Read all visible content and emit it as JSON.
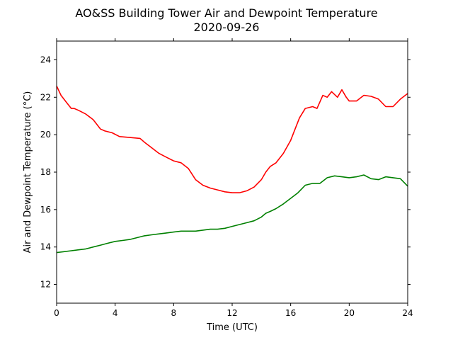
{
  "chart_data": {
    "type": "line",
    "title": "AO&SS Building Tower Air and Dewpoint Temperature",
    "subtitle": "2020-09-26",
    "xlabel": "Time (UTC)",
    "ylabel": "Air and Dewpoint Temperature (°C)",
    "xlim": [
      0,
      24
    ],
    "ylim": [
      11,
      25
    ],
    "xticks": [
      0,
      4,
      8,
      12,
      16,
      20,
      24
    ],
    "yticks": [
      12,
      14,
      16,
      18,
      20,
      22,
      24
    ],
    "grid": false,
    "legend": "none",
    "series": [
      {
        "color": "#ff0000",
        "x": [
          0,
          0.3,
          0.6,
          1.0,
          1.2,
          1.5,
          2.0,
          2.5,
          3.0,
          3.3,
          3.8,
          4.3,
          5.0,
          5.7,
          6.0,
          6.5,
          7.0,
          7.5,
          8.0,
          8.5,
          9.0,
          9.5,
          10.0,
          10.5,
          11.0,
          11.5,
          12.0,
          12.5,
          13.0,
          13.5,
          14.0,
          14.3,
          14.6,
          15.0,
          15.5,
          16.0,
          16.3,
          16.6,
          17.0,
          17.5,
          17.8,
          18.2,
          18.5,
          18.8,
          19.2,
          19.5,
          19.8,
          20.0,
          20.5,
          21.0,
          21.5,
          22.0,
          22.5,
          23.0,
          23.5,
          24.0
        ],
        "y": [
          22.6,
          22.1,
          21.8,
          21.4,
          21.4,
          21.3,
          21.1,
          20.8,
          20.3,
          20.2,
          20.1,
          19.9,
          19.85,
          19.8,
          19.6,
          19.3,
          19.0,
          18.8,
          18.6,
          18.5,
          18.2,
          17.6,
          17.3,
          17.15,
          17.05,
          16.95,
          16.9,
          16.9,
          17.0,
          17.2,
          17.6,
          18.0,
          18.3,
          18.5,
          19.0,
          19.7,
          20.3,
          20.9,
          21.4,
          21.5,
          21.4,
          22.1,
          22.0,
          22.3,
          22.0,
          22.4,
          22.0,
          21.8,
          21.8,
          22.1,
          22.05,
          21.9,
          21.5,
          21.5,
          21.9,
          22.2
        ]
      },
      {
        "color": "#008000",
        "x": [
          0,
          0.5,
          1.0,
          1.5,
          2.0,
          2.5,
          3.0,
          3.5,
          4.0,
          4.5,
          5.0,
          5.5,
          6.0,
          6.5,
          7.0,
          7.5,
          8.0,
          8.5,
          9.0,
          9.5,
          10.0,
          10.5,
          11.0,
          11.5,
          12.0,
          12.5,
          13.0,
          13.5,
          14.0,
          14.3,
          14.6,
          15.0,
          15.5,
          16.0,
          16.5,
          17.0,
          17.5,
          18.0,
          18.5,
          19.0,
          19.5,
          20.0,
          20.5,
          21.0,
          21.5,
          22.0,
          22.5,
          23.0,
          23.5,
          24.0
        ],
        "y": [
          13.7,
          13.75,
          13.8,
          13.85,
          13.9,
          14.0,
          14.1,
          14.2,
          14.3,
          14.35,
          14.4,
          14.5,
          14.6,
          14.65,
          14.7,
          14.75,
          14.8,
          14.85,
          14.85,
          14.85,
          14.9,
          14.95,
          14.95,
          15.0,
          15.1,
          15.2,
          15.3,
          15.4,
          15.6,
          15.8,
          15.9,
          16.05,
          16.3,
          16.6,
          16.9,
          17.3,
          17.4,
          17.4,
          17.7,
          17.8,
          17.75,
          17.7,
          17.75,
          17.85,
          17.65,
          17.6,
          17.75,
          17.7,
          17.65,
          17.25
        ]
      }
    ]
  }
}
